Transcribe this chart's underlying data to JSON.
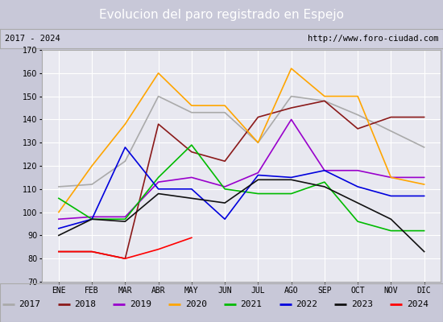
{
  "title": "Evolucion del paro registrado en Espejo",
  "subtitle_left": "2017 - 2024",
  "subtitle_right": "http://www.foro-ciudad.com",
  "ylim": [
    70,
    170
  ],
  "months": [
    "ENE",
    "FEB",
    "MAR",
    "ABR",
    "MAY",
    "JUN",
    "JUL",
    "AGO",
    "SEP",
    "OCT",
    "NOV",
    "DIC"
  ],
  "series": [
    {
      "year": "2017",
      "color": "#aaaaaa",
      "values": [
        111,
        112,
        122,
        150,
        143,
        143,
        130,
        150,
        148,
        142,
        135,
        128
      ]
    },
    {
      "year": "2018",
      "color": "#8b1a1a",
      "values": [
        83,
        83,
        80,
        138,
        126,
        122,
        141,
        145,
        148,
        136,
        141,
        141
      ]
    },
    {
      "year": "2019",
      "color": "#9900cc",
      "values": [
        97,
        98,
        98,
        113,
        115,
        111,
        117,
        140,
        118,
        118,
        115,
        115
      ]
    },
    {
      "year": "2020",
      "color": "#ffa500",
      "values": [
        100,
        120,
        138,
        160,
        146,
        146,
        130,
        162,
        150,
        150,
        115,
        112
      ]
    },
    {
      "year": "2021",
      "color": "#00bb00",
      "values": [
        106,
        97,
        97,
        115,
        129,
        110,
        108,
        108,
        113,
        96,
        92,
        92
      ]
    },
    {
      "year": "2022",
      "color": "#0000dd",
      "values": [
        93,
        97,
        128,
        110,
        110,
        97,
        116,
        115,
        118,
        111,
        107,
        107
      ]
    },
    {
      "year": "2023",
      "color": "#111111",
      "values": [
        90,
        97,
        96,
        108,
        106,
        104,
        114,
        114,
        111,
        104,
        97,
        83
      ]
    },
    {
      "year": "2024",
      "color": "#ff0000",
      "values": [
        83,
        83,
        80,
        84,
        89,
        null,
        null,
        null,
        null,
        null,
        null,
        null
      ]
    }
  ],
  "fig_bg": "#c8c8d8",
  "title_bg": "#5b9bd5",
  "title_color": "#ffffff",
  "subtitle_bg": "#d0d0e0",
  "plot_bg": "#e8e8f0",
  "grid_color": "#ffffff",
  "legend_bg": "#d0d0e0",
  "border_color": "#aaaaaa",
  "title_fontsize": 11,
  "tick_fontsize": 7,
  "legend_fontsize": 8
}
